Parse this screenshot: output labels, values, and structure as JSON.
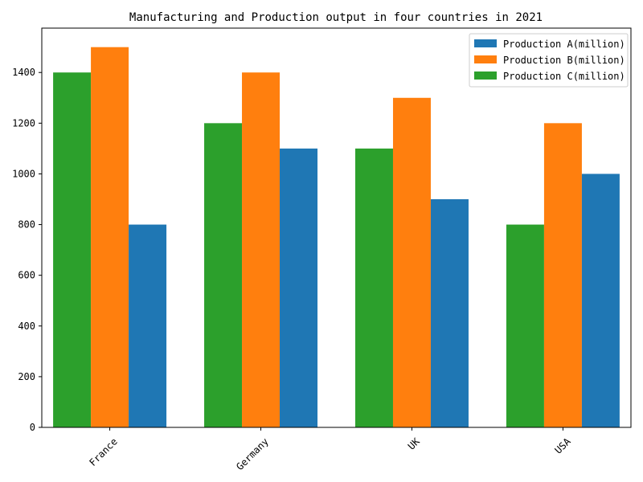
{
  "chart_data": {
    "type": "bar",
    "title": "Manufacturing and Production output in four countries in 2021",
    "xlabel": "",
    "ylabel": "",
    "categories": [
      "France",
      "Germany",
      "UK",
      "USA"
    ],
    "series": [
      {
        "name": "Production C(million)",
        "values": [
          1400,
          1200,
          1100,
          800
        ],
        "color": "#2ca02c"
      },
      {
        "name": "Production B(million)",
        "values": [
          1500,
          1400,
          1300,
          1200
        ],
        "color": "#ff7f0e"
      },
      {
        "name": "Production A(million)",
        "values": [
          800,
          1100,
          900,
          1000
        ],
        "color": "#1f77b4"
      }
    ],
    "legend_order": [
      "Production A(million)",
      "Production B(million)",
      "Production C(million)"
    ],
    "ylim": [
      0,
      1575
    ],
    "yticks": [
      0,
      200,
      400,
      600,
      800,
      1000,
      1200,
      1400
    ],
    "legend_position": "top-right",
    "grid": false,
    "xtick_rotation": 45
  }
}
